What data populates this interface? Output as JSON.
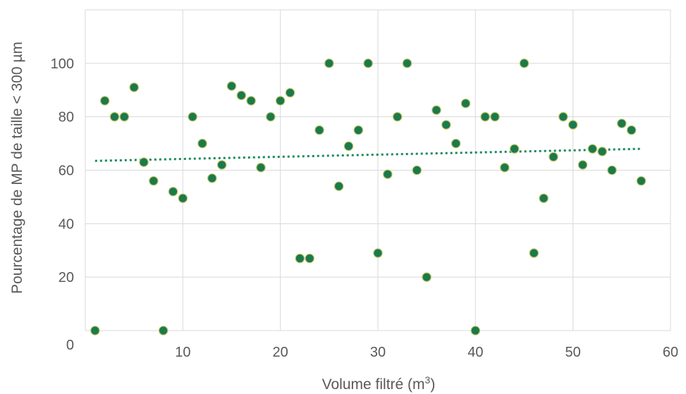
{
  "chart_data": {
    "type": "scatter",
    "xlabel": "Volume filtré (m",
    "xlabel_sup": "3",
    "xlabel_end": ")",
    "ylabel": "Pourcentage de MP de taille < 300 µm",
    "xlim": [
      0,
      60
    ],
    "ylim": [
      0,
      120
    ],
    "x_ticks": [
      10,
      20,
      30,
      40,
      50,
      60
    ],
    "y_ticks": [
      0,
      20,
      40,
      60,
      80,
      100
    ],
    "grid": true,
    "legend": "none",
    "trendline": {
      "type": "linear",
      "from": [
        1,
        63.5
      ],
      "to": [
        57,
        68
      ]
    },
    "series": [
      {
        "color": "#1a7a4e",
        "points": [
          [
            1,
            0
          ],
          [
            2,
            86
          ],
          [
            3,
            80
          ],
          [
            4,
            80
          ],
          [
            5,
            91
          ],
          [
            6,
            63
          ],
          [
            7,
            56
          ],
          [
            8,
            0
          ],
          [
            9,
            52
          ],
          [
            10,
            49.5
          ],
          [
            11,
            80
          ],
          [
            12,
            70
          ],
          [
            13,
            57
          ],
          [
            14,
            62
          ],
          [
            15,
            91.5
          ],
          [
            16,
            88
          ],
          [
            17,
            86
          ],
          [
            18,
            61
          ],
          [
            19,
            80
          ],
          [
            20,
            86
          ],
          [
            21,
            89
          ],
          [
            22,
            27
          ],
          [
            23,
            27
          ],
          [
            24,
            75
          ],
          [
            25,
            100
          ],
          [
            26,
            54
          ],
          [
            27,
            69
          ],
          [
            28,
            75
          ],
          [
            29,
            100
          ],
          [
            30,
            29
          ],
          [
            31,
            58.5
          ],
          [
            32,
            80
          ],
          [
            33,
            100
          ],
          [
            34,
            60
          ],
          [
            35,
            20
          ],
          [
            36,
            82.5
          ],
          [
            37,
            77
          ],
          [
            38,
            70
          ],
          [
            39,
            85
          ],
          [
            40,
            0
          ],
          [
            41,
            80
          ],
          [
            42,
            80
          ],
          [
            43,
            61
          ],
          [
            44,
            68
          ],
          [
            45,
            100
          ],
          [
            46,
            29
          ],
          [
            47,
            49.5
          ],
          [
            48,
            65
          ],
          [
            49,
            80
          ],
          [
            50,
            77
          ],
          [
            51,
            62
          ],
          [
            52,
            68
          ],
          [
            53,
            67
          ],
          [
            54,
            60
          ],
          [
            55,
            77.5
          ],
          [
            56,
            75
          ],
          [
            57,
            56
          ]
        ]
      }
    ]
  }
}
